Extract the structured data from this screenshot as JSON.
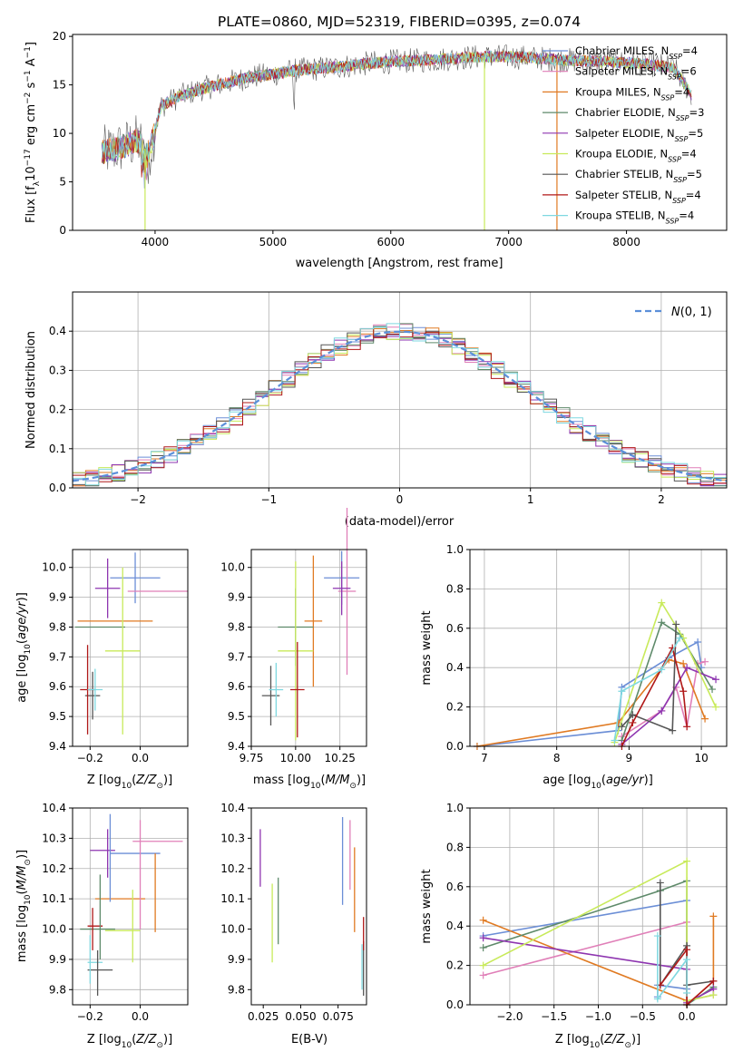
{
  "figure": {
    "title": "PLATE=0860, MJD=52319, FIBERID=0395, z=0.074"
  },
  "colors": {
    "series": [
      "#6b8ed6",
      "#e07fb8",
      "#e07a22",
      "#5e8a6a",
      "#8e35b0",
      "#c8ea5a",
      "#555555",
      "#b01818",
      "#7fd8e0"
    ],
    "grid": "#b0b0b0",
    "normal_curve": "#5b8fd9"
  },
  "chart_data": [
    {
      "type": "line",
      "title": "PLATE=0860, MJD=52319, FIBERID=0395, z=0.074",
      "xlabel": "wavelength [Angstrom, rest frame]",
      "ylabel": "Flux [f_λ10^-17 erg cm^-2 s^-1 A^-1]",
      "xlim": [
        3300,
        8850
      ],
      "ylim": [
        0,
        20.2
      ],
      "xticks": [
        4000,
        5000,
        6000,
        7000,
        8000
      ],
      "yticks": [
        0,
        5,
        10,
        15,
        20
      ],
      "grid": false,
      "legend_position": "top-right",
      "legend": [
        {
          "model": "Chabrier MILES",
          "nssp": 4
        },
        {
          "model": "Salpeter MILES",
          "nssp": 6
        },
        {
          "model": "Kroupa MILES",
          "nssp": 4
        },
        {
          "model": "Chabrier ELODIE",
          "nssp": 3
        },
        {
          "model": "Salpeter ELODIE",
          "nssp": 5
        },
        {
          "model": "Kroupa ELODIE",
          "nssp": 4
        },
        {
          "model": "Chabrier STELIB",
          "nssp": 5
        },
        {
          "model": "Salpeter STELIB",
          "nssp": 4
        },
        {
          "model": "Kroupa STELIB",
          "nssp": 4
        }
      ],
      "continuum": {
        "x": [
          3550,
          3700,
          3850,
          3950,
          4050,
          4200,
          4400,
          4600,
          4800,
          5000,
          5200,
          5400,
          5600,
          5800,
          6000,
          6200,
          6400,
          6600,
          6800,
          7000,
          7200,
          7400,
          7600,
          7800,
          8000,
          8200,
          8400,
          8550
        ],
        "y": [
          8.0,
          8.5,
          9.2,
          8.0,
          12.8,
          13.8,
          14.6,
          15.2,
          15.8,
          16.1,
          16.5,
          16.7,
          16.9,
          17.2,
          17.4,
          17.5,
          17.6,
          17.8,
          17.9,
          17.9,
          17.8,
          17.6,
          17.5,
          17.4,
          17.3,
          17.1,
          16.8,
          14.0
        ]
      },
      "spikes": [
        {
          "x": 3915,
          "y_min": 0
        },
        {
          "x": 6795,
          "y_min": 0
        },
        {
          "x": 7410,
          "y_min": 0
        }
      ]
    },
    {
      "type": "line",
      "xlabel": "(data-model)/error",
      "ylabel": "Normed distribution",
      "xlim": [
        -2.5,
        2.5
      ],
      "ylim": [
        0,
        0.5
      ],
      "xticks": [
        -2,
        -1,
        0,
        1,
        2
      ],
      "yticks": [
        0.0,
        0.1,
        0.2,
        0.3,
        0.4
      ],
      "grid": true,
      "legend_position": "top-right",
      "legend_label": "N(0,1)",
      "histogram_step": "step-mid"
    },
    {
      "type": "scatter",
      "xlabel": "Z [log10(Z/Z⊙)]",
      "ylabel": "age [log10(age/yr)]",
      "xlim": [
        -0.27,
        0.19
      ],
      "ylim": [
        9.4,
        10.06
      ],
      "xticks": [
        -0.2,
        0.0
      ],
      "yticks": [
        9.4,
        9.5,
        9.6,
        9.7,
        9.8,
        9.9,
        10.0
      ],
      "grid": true,
      "points": [
        {
          "x": -0.02,
          "y": 9.965,
          "xerr": 0.1,
          "yerr": 0.085,
          "s": 0
        },
        {
          "x": 0.07,
          "y": 9.92,
          "xerr": 0.12,
          "yerr": 0.0,
          "s": 1
        },
        {
          "x": -0.1,
          "y": 9.82,
          "xerr": 0.15,
          "yerr": 0.0,
          "s": 2
        },
        {
          "x": -0.16,
          "y": 9.8,
          "xerr": 0.1,
          "yerr": 0.0,
          "s": 3
        },
        {
          "x": -0.13,
          "y": 9.93,
          "xerr": 0.05,
          "yerr": 0.1,
          "s": 4
        },
        {
          "x": -0.07,
          "y": 9.72,
          "xerr": 0.07,
          "yerr": 0.28,
          "s": 5
        },
        {
          "x": -0.19,
          "y": 9.57,
          "xerr": 0.03,
          "yerr": 0.08,
          "s": 6
        },
        {
          "x": -0.21,
          "y": 9.59,
          "xerr": 0.03,
          "yerr": 0.15,
          "s": 7
        },
        {
          "x": -0.18,
          "y": 9.59,
          "xerr": 0.03,
          "yerr": 0.07,
          "s": 8
        }
      ]
    },
    {
      "type": "scatter",
      "xlabel": "mass [log10(M/M⊙)]",
      "ylabel": "",
      "xlim": [
        9.75,
        10.4
      ],
      "ylim": [
        9.4,
        10.06
      ],
      "xticks": [
        9.75,
        10.0,
        10.25
      ],
      "yticks": [
        9.4,
        9.5,
        9.6,
        9.7,
        9.8,
        9.9,
        10.0
      ],
      "grid": true,
      "points": [
        {
          "x": 10.26,
          "y": 9.965,
          "xerr": 0.1,
          "yerr": 0.09,
          "s": 0
        },
        {
          "x": 10.29,
          "y": 9.92,
          "xerr": 0.05,
          "yerr": 0.28,
          "s": 1
        },
        {
          "x": 10.1,
          "y": 9.82,
          "xerr": 0.05,
          "yerr": 0.22,
          "s": 2
        },
        {
          "x": 10.0,
          "y": 9.8,
          "xerr": 0.1,
          "yerr": 0.13,
          "s": 3
        },
        {
          "x": 10.26,
          "y": 9.93,
          "xerr": 0.05,
          "yerr": 0.09,
          "s": 4
        },
        {
          "x": 10.0,
          "y": 9.72,
          "xerr": 0.1,
          "yerr": 0.3,
          "s": 5
        },
        {
          "x": 9.86,
          "y": 9.57,
          "xerr": 0.05,
          "yerr": 0.1,
          "s": 6
        },
        {
          "x": 10.01,
          "y": 9.59,
          "xerr": 0.04,
          "yerr": 0.16,
          "s": 7
        },
        {
          "x": 9.89,
          "y": 9.59,
          "xerr": 0.04,
          "yerr": 0.09,
          "s": 8
        }
      ]
    },
    {
      "type": "line",
      "xlabel": "age [log10(age/yr)]",
      "ylabel": "mass weight",
      "xlim": [
        6.8,
        10.35
      ],
      "ylim": [
        0,
        1.0
      ],
      "xticks": [
        7,
        8,
        9,
        10
      ],
      "yticks": [
        0.0,
        0.2,
        0.4,
        0.6,
        0.8,
        1.0
      ],
      "grid": true,
      "series": [
        {
          "s": 0,
          "x": [
            6.9,
            8.85,
            8.9,
            9.55,
            9.95,
            10.0
          ],
          "y": [
            0.0,
            0.08,
            0.3,
            0.45,
            0.53,
            0.4
          ]
        },
        {
          "s": 1,
          "x": [
            8.9,
            9.45,
            9.65,
            9.8,
            9.95,
            10.05
          ],
          "y": [
            0.05,
            0.18,
            0.3,
            0.1,
            0.42,
            0.43
          ]
        },
        {
          "s": 2,
          "x": [
            6.9,
            8.85,
            9.55,
            9.75,
            10.05
          ],
          "y": [
            0.0,
            0.12,
            0.44,
            0.42,
            0.14
          ]
        },
        {
          "s": 3,
          "x": [
            8.9,
            9.45,
            9.7,
            10.15
          ],
          "y": [
            0.03,
            0.63,
            0.57,
            0.29
          ]
        },
        {
          "s": 4,
          "x": [
            8.9,
            9.45,
            9.8,
            10.2
          ],
          "y": [
            0.01,
            0.18,
            0.4,
            0.34
          ]
        },
        {
          "s": 5,
          "x": [
            8.8,
            9.45,
            9.75,
            10.2
          ],
          "y": [
            0.02,
            0.73,
            0.55,
            0.2
          ]
        },
        {
          "s": 6,
          "x": [
            8.9,
            9.05,
            9.6,
            9.65
          ],
          "y": [
            0.1,
            0.16,
            0.08,
            0.62
          ]
        },
        {
          "s": 7,
          "x": [
            8.9,
            9.05,
            9.6,
            9.75,
            9.8
          ],
          "y": [
            0.0,
            0.12,
            0.5,
            0.28,
            0.1
          ]
        },
        {
          "s": 8,
          "x": [
            8.8,
            8.9,
            9.45,
            9.7
          ],
          "y": [
            0.03,
            0.28,
            0.39,
            0.55
          ]
        }
      ]
    },
    {
      "type": "scatter",
      "xlabel": "Z [log10(Z/Z⊙)]",
      "ylabel": "mass [log10(M/M⊙)]",
      "xlim": [
        -0.27,
        0.19
      ],
      "ylim": [
        9.75,
        10.4
      ],
      "xticks": [
        -0.2,
        0.0
      ],
      "yticks": [
        9.8,
        9.9,
        10.0,
        10.1,
        10.2,
        10.3,
        10.4
      ],
      "grid": true,
      "points": [
        {
          "x": -0.02,
          "y": 10.25,
          "xerr": 0.1,
          "yerr": 0.0,
          "s": 0
        },
        {
          "x": 0.07,
          "y": 10.29,
          "xerr": 0.1,
          "yerr": 0.0,
          "s": 1
        },
        {
          "x": -0.08,
          "y": 10.1,
          "xerr": 0.1,
          "yerr": 0.0,
          "s": 2
        },
        {
          "x": -0.17,
          "y": 10.0,
          "xerr": 0.07,
          "yerr": 0.0,
          "s": 3
        },
        {
          "x": -0.15,
          "y": 10.26,
          "xerr": 0.05,
          "yerr": 0.0,
          "s": 4
        },
        {
          "x": -0.07,
          "y": 9.995,
          "xerr": 0.07,
          "yerr": 0.0,
          "s": 5
        },
        {
          "x": -0.16,
          "y": 9.865,
          "xerr": 0.05,
          "yerr": 0.0,
          "s": 6
        },
        {
          "x": -0.18,
          "y": 10.01,
          "xerr": 0.03,
          "yerr": 0.0,
          "s": 7
        },
        {
          "x": -0.18,
          "y": 9.89,
          "xerr": 0.03,
          "yerr": 0.0,
          "s": 8
        }
      ],
      "vlines": [
        {
          "x": -0.12,
          "y1": 10.09,
          "y2": 10.38,
          "s": 0
        },
        {
          "x": 0.0,
          "y1": 10.0,
          "y2": 10.36,
          "s": 1
        },
        {
          "x": 0.06,
          "y1": 9.99,
          "y2": 10.25,
          "s": 2
        },
        {
          "x": -0.16,
          "y1": 9.9,
          "y2": 10.18,
          "s": 3
        },
        {
          "x": -0.13,
          "y1": 10.17,
          "y2": 10.33,
          "s": 4
        },
        {
          "x": -0.03,
          "y1": 9.89,
          "y2": 10.13,
          "s": 5
        },
        {
          "x": -0.17,
          "y1": 9.78,
          "y2": 9.93,
          "s": 6
        },
        {
          "x": -0.19,
          "y1": 9.93,
          "y2": 10.07,
          "s": 7
        },
        {
          "x": -0.2,
          "y1": 9.82,
          "y2": 9.98,
          "s": 8
        }
      ]
    },
    {
      "type": "scatter",
      "xlabel": "E(B-V)",
      "ylabel": "",
      "xlim": [
        0.017,
        0.094
      ],
      "ylim": [
        9.75,
        10.4
      ],
      "xticks": [
        0.025,
        0.05,
        0.075
      ],
      "xticklabels": [
        "0.025",
        "0.050",
        "0.075"
      ],
      "yticks": [
        9.8,
        9.9,
        10.0,
        10.1,
        10.2,
        10.3,
        10.4
      ],
      "grid": false,
      "vlines": [
        {
          "x": 0.078,
          "y1": 10.08,
          "y2": 10.37,
          "s": 0
        },
        {
          "x": 0.083,
          "y1": 10.13,
          "y2": 10.36,
          "s": 1
        },
        {
          "x": 0.086,
          "y1": 9.99,
          "y2": 10.27,
          "s": 2
        },
        {
          "x": 0.035,
          "y1": 9.95,
          "y2": 10.17,
          "s": 3
        },
        {
          "x": 0.023,
          "y1": 10.14,
          "y2": 10.33,
          "s": 4
        },
        {
          "x": 0.031,
          "y1": 9.89,
          "y2": 10.15,
          "s": 5
        },
        {
          "x": 0.092,
          "y1": 9.78,
          "y2": 9.96,
          "s": 6
        },
        {
          "x": 0.092,
          "y1": 9.93,
          "y2": 10.04,
          "s": 7
        },
        {
          "x": 0.091,
          "y1": 9.8,
          "y2": 9.95,
          "s": 8
        }
      ]
    },
    {
      "type": "line",
      "xlabel": "Z [log10(Z/Z⊙)]",
      "ylabel": "mass weight",
      "xlim": [
        -2.45,
        0.45
      ],
      "ylim": [
        0,
        1.0
      ],
      "xticks": [
        -2.0,
        -1.5,
        -1.0,
        -0.5,
        0.0
      ],
      "yticks": [
        0.0,
        0.2,
        0.4,
        0.6,
        0.8,
        1.0
      ],
      "grid": true,
      "series": [
        {
          "s": 0,
          "x": [
            -2.3,
            0.0,
            0.0,
            -0.33,
            -0.33
          ],
          "y": [
            0.35,
            0.53,
            0.08,
            0.1,
            0.04
          ]
        },
        {
          "s": 1,
          "x": [
            -2.3,
            0.0,
            0.0,
            0.3,
            0.3
          ],
          "y": [
            0.15,
            0.42,
            0.02,
            0.05,
            0.12
          ]
        },
        {
          "s": 2,
          "x": [
            -2.3,
            0.0,
            0.0,
            0.3,
            0.3
          ],
          "y": [
            0.43,
            0.02,
            0.0,
            0.12,
            0.45
          ]
        },
        {
          "s": 3,
          "x": [
            -2.3,
            -0.3,
            0.0,
            0.0,
            0.3
          ],
          "y": [
            0.29,
            0.58,
            0.63,
            0.0,
            0.09
          ]
        },
        {
          "s": 4,
          "x": [
            -2.3,
            0.0,
            0.0,
            0.3
          ],
          "y": [
            0.34,
            0.18,
            0.01,
            0.08
          ]
        },
        {
          "s": 5,
          "x": [
            -2.3,
            0.0,
            0.0,
            0.3
          ],
          "y": [
            0.2,
            0.73,
            0.02,
            0.05
          ]
        },
        {
          "s": 6,
          "x": [
            -0.3,
            -0.3,
            0.0,
            0.0,
            0.3
          ],
          "y": [
            0.62,
            0.1,
            0.3,
            0.1,
            0.12
          ]
        },
        {
          "s": 7,
          "x": [
            -0.3,
            0.0,
            0.0,
            0.3
          ],
          "y": [
            0.1,
            0.28,
            0.0,
            0.12
          ]
        },
        {
          "s": 8,
          "x": [
            -0.33,
            -0.33,
            0.0,
            0.0
          ],
          "y": [
            0.35,
            0.03,
            0.23,
            0.06
          ]
        }
      ]
    }
  ]
}
